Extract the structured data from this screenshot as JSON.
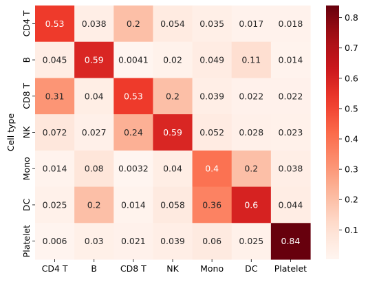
{
  "chart_data": {
    "type": "heatmap",
    "title": "",
    "xlabel": "",
    "ylabel": "Cell type",
    "x_categories": [
      "CD4 T",
      "B",
      "CD8 T",
      "NK",
      "Mono",
      "DC",
      "Platelet"
    ],
    "y_categories": [
      "CD4 T",
      "B",
      "CD8 T",
      "NK",
      "Mono",
      "DC",
      "Platelet"
    ],
    "values": [
      [
        0.53,
        0.038,
        0.2,
        0.054,
        0.035,
        0.017,
        0.018
      ],
      [
        0.045,
        0.59,
        0.0041,
        0.02,
        0.049,
        0.11,
        0.014
      ],
      [
        0.31,
        0.04,
        0.53,
        0.2,
        0.039,
        0.022,
        0.022
      ],
      [
        0.072,
        0.027,
        0.24,
        0.59,
        0.052,
        0.028,
        0.023
      ],
      [
        0.014,
        0.08,
        0.0032,
        0.04,
        0.4,
        0.2,
        0.038
      ],
      [
        0.025,
        0.2,
        0.014,
        0.058,
        0.36,
        0.6,
        0.044
      ],
      [
        0.006,
        0.03,
        0.021,
        0.039,
        0.06,
        0.025,
        0.84
      ]
    ],
    "value_labels": [
      [
        "0.53",
        "0.038",
        "0.2",
        "0.054",
        "0.035",
        "0.017",
        "0.018"
      ],
      [
        "0.045",
        "0.59",
        "0.0041",
        "0.02",
        "0.049",
        "0.11",
        "0.014"
      ],
      [
        "0.31",
        "0.04",
        "0.53",
        "0.2",
        "0.039",
        "0.022",
        "0.022"
      ],
      [
        "0.072",
        "0.027",
        "0.24",
        "0.59",
        "0.052",
        "0.028",
        "0.023"
      ],
      [
        "0.014",
        "0.08",
        "0.0032",
        "0.04",
        "0.4",
        "0.2",
        "0.038"
      ],
      [
        "0.025",
        "0.2",
        "0.014",
        "0.058",
        "0.36",
        "0.6",
        "0.044"
      ],
      [
        "0.006",
        "0.03",
        "0.021",
        "0.039",
        "0.06",
        "0.025",
        "0.84"
      ]
    ],
    "colormap": "Reds",
    "color_range": [
      0.0032,
      0.84
    ],
    "colorbar_ticks": [
      "0.1",
      "0.2",
      "0.3",
      "0.4",
      "0.5",
      "0.6",
      "0.7",
      "0.8"
    ],
    "colorbar_tick_values": [
      0.1,
      0.2,
      0.3,
      0.4,
      0.5,
      0.6,
      0.7,
      0.8
    ],
    "grid": false,
    "colorbar_placement": "right"
  }
}
